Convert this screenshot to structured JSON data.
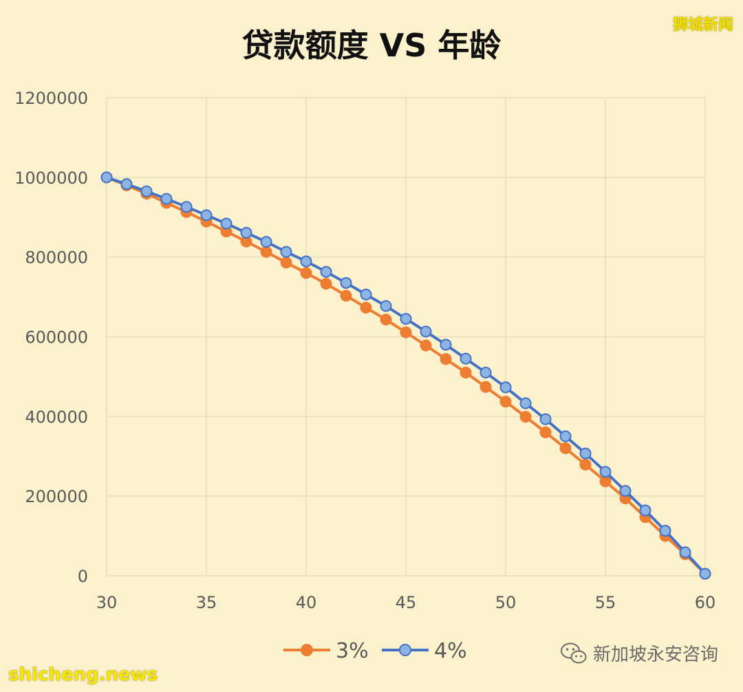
{
  "watermarks": {
    "top_right": "狮城新闻",
    "bottom_left": "shicheng.news",
    "account": "新加坡永安咨询"
  },
  "colors": {
    "background": "#fbf1cc",
    "grid": "#e6dcc0",
    "series_3pct": "#ed7d31",
    "series_4pct_line": "#4472c4",
    "series_4pct_marker": "#8db4e2",
    "axis_text": "#595959"
  },
  "chart_data": {
    "type": "line",
    "title": "贷款额度 VS 年龄",
    "xlabel": "",
    "ylabel": "",
    "xlim": [
      30,
      60
    ],
    "ylim": [
      0,
      1200000
    ],
    "x_ticks": [
      "30",
      "35",
      "40",
      "45",
      "50",
      "55",
      "60"
    ],
    "y_ticks": [
      "0",
      "200000",
      "400000",
      "600000",
      "800000",
      "1000000",
      "1200000"
    ],
    "grid": true,
    "legend_position": "bottom",
    "x": [
      30,
      31,
      32,
      33,
      34,
      35,
      36,
      37,
      38,
      39,
      40,
      41,
      42,
      43,
      44,
      45,
      46,
      47,
      48,
      49,
      50,
      51,
      52,
      53,
      54,
      55,
      56,
      57,
      58,
      59,
      60
    ],
    "series": [
      {
        "name": "3%",
        "values": [
          1000000,
          980000,
          959000,
          936000,
          913000,
          889000,
          864000,
          839000,
          813000,
          786000,
          760000,
          733000,
          703000,
          673000,
          643000,
          611000,
          578000,
          544000,
          510000,
          474000,
          437000,
          399000,
          360000,
          320000,
          279000,
          237000,
          194000,
          147000,
          100000,
          54000,
          5000
        ]
      },
      {
        "name": "4%",
        "values": [
          1000000,
          983000,
          965000,
          946000,
          926000,
          905000,
          884000,
          861000,
          838000,
          813000,
          789000,
          763000,
          735000,
          706000,
          677000,
          645000,
          613000,
          580000,
          545000,
          510000,
          473000,
          433000,
          393000,
          350000,
          307000,
          261000,
          213000,
          164000,
          113000,
          59000,
          5000
        ]
      }
    ]
  }
}
